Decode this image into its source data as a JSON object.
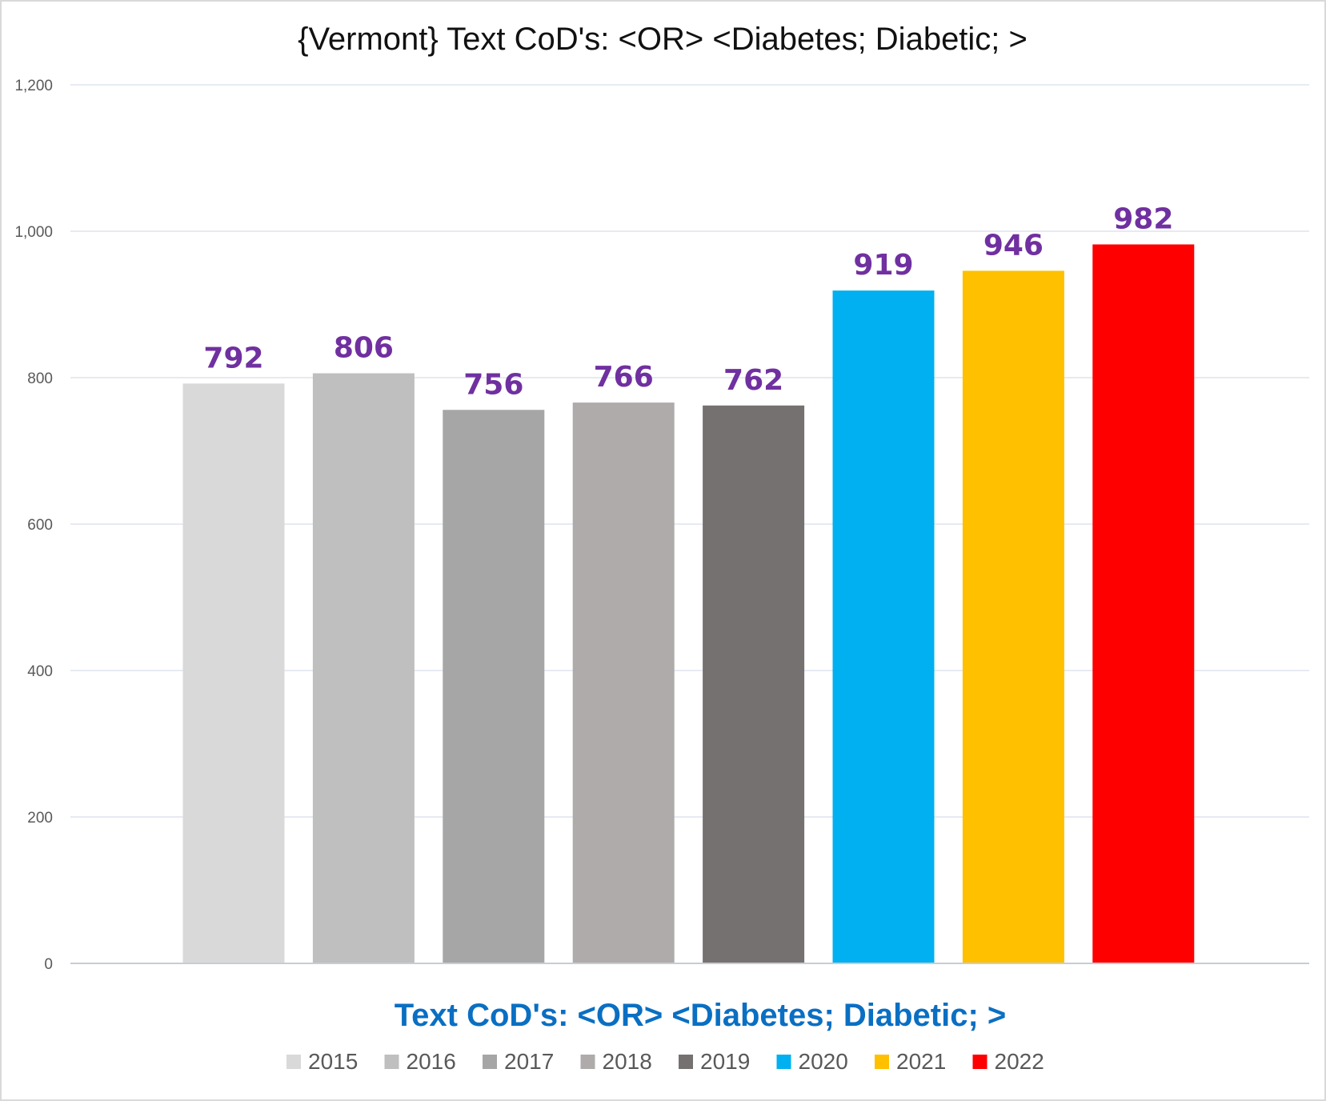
{
  "chart_data": {
    "type": "bar",
    "title": "{Vermont}  Text CoD's: <OR> <Diabetes; Diabetic; >",
    "xlabel": "Text CoD's: <OR> <Diabetes; Diabetic; >",
    "ylabel": "",
    "ylim": [
      0,
      1200
    ],
    "yticks": [
      0,
      200,
      400,
      600,
      800,
      1000,
      1200
    ],
    "ytick_labels": [
      "0",
      "200",
      "400",
      "600",
      "800",
      "1,000",
      "1,200"
    ],
    "grid": true,
    "legend_position": "bottom",
    "series": [
      {
        "name": "2015",
        "value": 792,
        "color": "#d9d9d9"
      },
      {
        "name": "2016",
        "value": 806,
        "color": "#bfbfbf"
      },
      {
        "name": "2017",
        "value": 756,
        "color": "#a6a6a6"
      },
      {
        "name": "2018",
        "value": 766,
        "color": "#afabab"
      },
      {
        "name": "2019",
        "value": 762,
        "color": "#767171"
      },
      {
        "name": "2020",
        "value": 919,
        "color": "#00b0f0"
      },
      {
        "name": "2021",
        "value": 946,
        "color": "#ffc000"
      },
      {
        "name": "2022",
        "value": 982,
        "color": "#ff0000"
      }
    ],
    "data_label_color": "#7030a0"
  }
}
